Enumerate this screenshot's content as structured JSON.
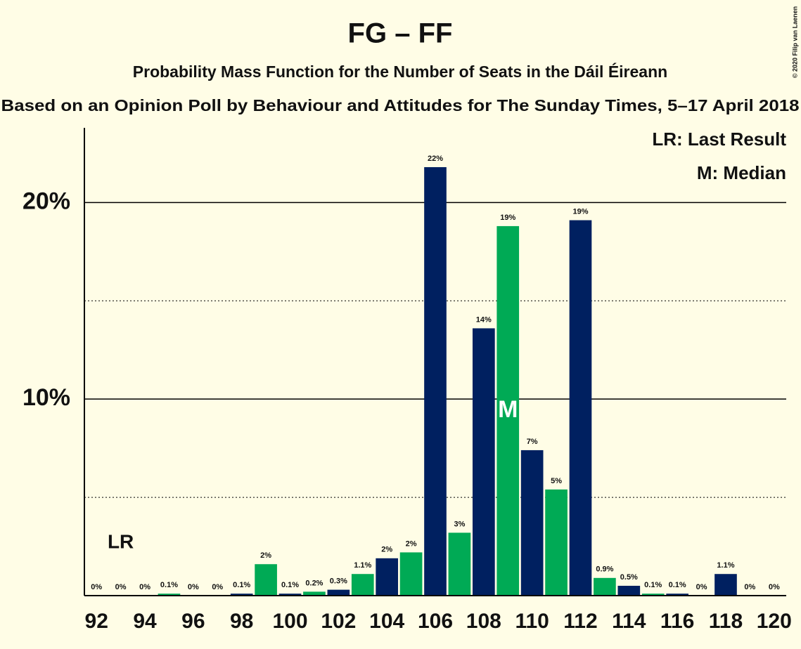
{
  "chart_data": {
    "type": "bar",
    "title": "FG – FF",
    "subtitle": "Probability Mass Function for the Number of Seats in the Dáil Éireann",
    "subtitle2": "Based on an Opinion Poll by Behaviour and Attitudes for The Sunday Times, 5–17 April 2018",
    "copyright": "© 2020 Filip van Laenen",
    "x": [
      92,
      93,
      94,
      95,
      96,
      97,
      98,
      99,
      100,
      101,
      102,
      103,
      104,
      105,
      106,
      107,
      108,
      109,
      110,
      111,
      112,
      113,
      114,
      115,
      116,
      117,
      118,
      119,
      120
    ],
    "values": [
      0,
      0,
      0,
      0.1,
      0,
      0,
      0.1,
      1.6,
      0.1,
      0.2,
      0.3,
      1.1,
      1.9,
      2.2,
      21.8,
      3.2,
      13.6,
      18.8,
      7.4,
      5.4,
      19.1,
      0.9,
      0.5,
      0.1,
      0.1,
      0,
      1.1,
      0,
      0
    ],
    "value_labels": [
      "0%",
      "0%",
      "0%",
      "0.1%",
      "0%",
      "0%",
      "0.1%",
      "2%",
      "0.1%",
      "0.2%",
      "0.3%",
      "1.1%",
      "2%",
      "2%",
      "22%",
      "3%",
      "14%",
      "19%",
      "7%",
      "5%",
      "19%",
      "0.9%",
      "0.5%",
      "0.1%",
      "0.1%",
      "0%",
      "1.1%",
      "0%",
      "0%"
    ],
    "colors": [
      "#002060",
      "#00aa55",
      "#002060",
      "#00aa55",
      "#002060",
      "#00aa55",
      "#002060",
      "#00aa55",
      "#002060",
      "#00aa55",
      "#002060",
      "#00aa55",
      "#002060",
      "#00aa55",
      "#002060",
      "#00aa55",
      "#002060",
      "#00aa55",
      "#002060",
      "#00aa55",
      "#002060",
      "#00aa55",
      "#002060",
      "#00aa55",
      "#002060",
      "#00aa55",
      "#002060",
      "#00aa55",
      "#002060"
    ],
    "xlim": [
      91.5,
      120.5
    ],
    "xticks": [
      92,
      94,
      96,
      98,
      100,
      102,
      104,
      106,
      108,
      110,
      112,
      114,
      116,
      118,
      120
    ],
    "ylim": [
      0,
      23.8
    ],
    "yticks": [
      {
        "value": 10,
        "label": "10%"
      },
      {
        "value": 20,
        "label": "20%"
      }
    ],
    "minor_yticks": [
      5,
      15
    ],
    "grid": true,
    "annotations": [
      {
        "x": 93,
        "label": "LR"
      },
      {
        "x": 109,
        "label": "M"
      }
    ],
    "legend": [
      "LR: Last Result",
      "M: Median"
    ]
  }
}
